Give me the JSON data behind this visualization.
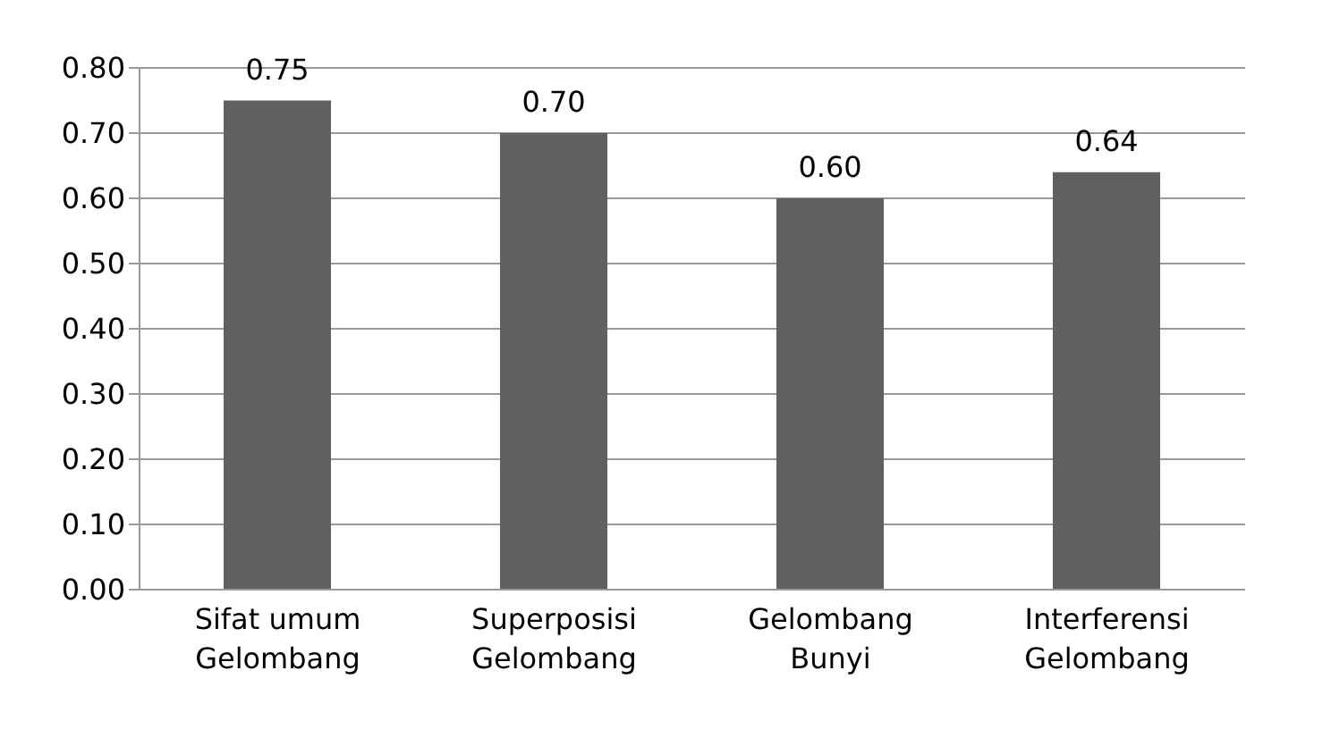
{
  "chart_data": {
    "type": "bar",
    "categories": [
      "Sifat umum Gelombang",
      "Superposisi Gelombang",
      "Gelombang Bunyi",
      "Interferensi Gelombang"
    ],
    "values": [
      0.75,
      0.7,
      0.6,
      0.64
    ],
    "color": "#606060",
    "value_labels": [
      "0.75",
      "0.70",
      "0.60",
      "0.64"
    ],
    "ylim": [
      0,
      0.8
    ],
    "yticks": [
      {
        "value": 0,
        "label": "0.00"
      },
      {
        "value": 0.1,
        "label": "0.10"
      },
      {
        "value": 0.2,
        "label": "0.20"
      },
      {
        "value": 0.3,
        "label": "0.30"
      },
      {
        "value": 0.4,
        "label": "0.40"
      },
      {
        "value": 0.5,
        "label": "0.50"
      },
      {
        "value": 0.6,
        "label": "0.60"
      },
      {
        "value": 0.7,
        "label": "0.70"
      },
      {
        "value": 0.8,
        "label": "0.80"
      }
    ],
    "grid": "y"
  }
}
